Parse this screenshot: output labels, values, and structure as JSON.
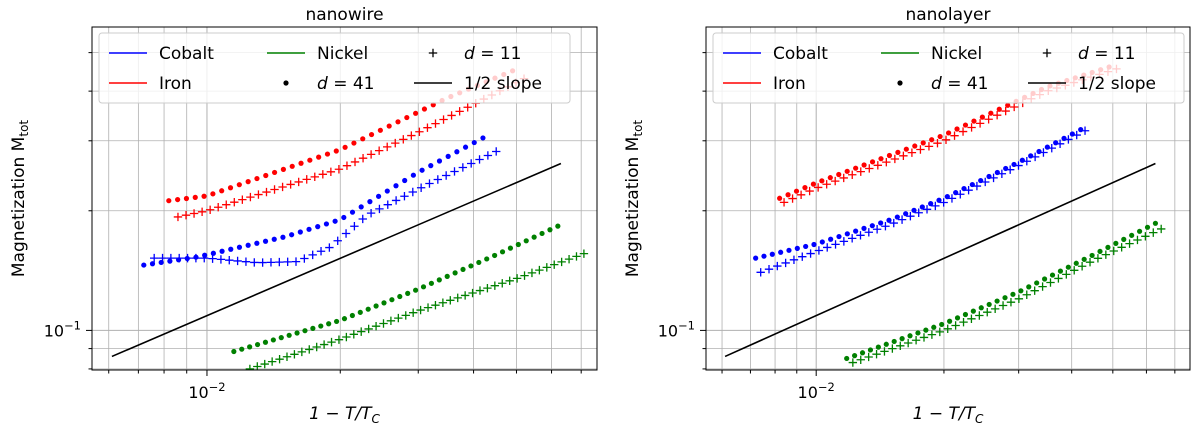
{
  "colors": {
    "cobalt": "#0000ff",
    "iron": "#ff0000",
    "nickel": "#008000",
    "slope": "#000000"
  },
  "chart_data": [
    {
      "type": "scatter",
      "title": "nanowire",
      "xlabel": "1 − T/T",
      "xlabel_sub": "C",
      "ylabel": "Magnetization M",
      "ylabel_sub": "tot",
      "xscale": "log",
      "yscale": "log",
      "xlim": [
        0.0055,
        0.076
      ],
      "ylim": [
        0.0795,
        0.58
      ],
      "x_tick_labels": [
        {
          "value": 0.01,
          "base": "10",
          "exp": "−2"
        }
      ],
      "y_tick_labels": [
        {
          "value": 0.1,
          "base": "10",
          "exp": "−1"
        }
      ],
      "grid": "major and minor",
      "legend": {
        "placement": "top",
        "entries": [
          {
            "label": "Cobalt",
            "kind": "line",
            "color": "cobalt"
          },
          {
            "label": "Iron",
            "kind": "line",
            "color": "iron"
          },
          {
            "label": "Nickel",
            "kind": "line",
            "color": "nickel"
          },
          {
            "label": "d = 41",
            "var": "d",
            "rest": " = 41",
            "kind": "dot"
          },
          {
            "label": "d = 11",
            "var": "d",
            "rest": " = 11",
            "kind": "plus"
          },
          {
            "label": "1/2 slope",
            "kind": "line",
            "color": "slope"
          }
        ]
      },
      "slope_line": {
        "x": [
          0.0061,
          0.063
        ],
        "y": [
          0.086,
          0.263
        ]
      },
      "series": [
        {
          "material": "Cobalt",
          "d": 41,
          "color": "cobalt",
          "marker": "dot",
          "x_range": [
            0.0072,
            0.042
          ],
          "points": 40,
          "curve": [
            [
              0.0072,
              0.146
            ],
            [
              0.0095,
              0.153
            ],
            [
              0.015,
              0.172
            ],
            [
              0.02,
              0.19
            ],
            [
              0.03,
              0.25
            ],
            [
              0.042,
              0.305
            ]
          ]
        },
        {
          "material": "Cobalt",
          "d": 11,
          "color": "cobalt",
          "marker": "plus",
          "x_range": [
            0.0076,
            0.045
          ],
          "points": 42,
          "curve": [
            [
              0.0076,
              0.152
            ],
            [
              0.01,
              0.152
            ],
            [
              0.013,
              0.148
            ],
            [
              0.016,
              0.149
            ],
            [
              0.019,
              0.162
            ],
            [
              0.023,
              0.195
            ],
            [
              0.032,
              0.235
            ],
            [
              0.045,
              0.282
            ]
          ]
        },
        {
          "material": "Iron",
          "d": 41,
          "color": "iron",
          "marker": "dot",
          "x_range": [
            0.0082,
            0.049
          ],
          "points": 40,
          "curve": [
            [
              0.0082,
              0.212
            ],
            [
              0.01,
              0.218
            ],
            [
              0.02,
              0.285
            ],
            [
              0.035,
              0.385
            ],
            [
              0.049,
              0.45
            ]
          ]
        },
        {
          "material": "Iron",
          "d": 11,
          "color": "iron",
          "marker": "plus",
          "x_range": [
            0.0086,
            0.052
          ],
          "points": 44,
          "curve": [
            [
              0.0086,
              0.193
            ],
            [
              0.01,
              0.2
            ],
            [
              0.02,
              0.255
            ],
            [
              0.03,
              0.315
            ],
            [
              0.052,
              0.43
            ]
          ]
        },
        {
          "material": "Nickel",
          "d": 41,
          "color": "nickel",
          "marker": "dot",
          "x_range": [
            0.0115,
            0.062
          ],
          "points": 42,
          "curve": [
            [
              0.0115,
              0.0885
            ],
            [
              0.02,
              0.106
            ],
            [
              0.03,
              0.127
            ],
            [
              0.045,
              0.155
            ],
            [
              0.062,
              0.183
            ]
          ]
        },
        {
          "material": "Nickel",
          "d": 11,
          "color": "nickel",
          "marker": "plus",
          "x_range": [
            0.0125,
            0.071
          ],
          "points": 46,
          "curve": [
            [
              0.0125,
              0.08
            ],
            [
              0.02,
              0.095
            ],
            [
              0.03,
              0.112
            ],
            [
              0.05,
              0.135
            ],
            [
              0.071,
              0.156
            ]
          ]
        }
      ]
    },
    {
      "type": "scatter",
      "title": "nanolayer",
      "xlabel": "1 − T/T",
      "xlabel_sub": "C",
      "ylabel": "Magnetization M",
      "ylabel_sub": "tot",
      "xscale": "log",
      "yscale": "log",
      "xlim": [
        0.0055,
        0.076
      ],
      "ylim": [
        0.0795,
        0.58
      ],
      "x_tick_labels": [
        {
          "value": 0.01,
          "base": "10",
          "exp": "−2"
        }
      ],
      "y_tick_labels": [
        {
          "value": 0.1,
          "base": "10",
          "exp": "−1"
        }
      ],
      "grid": "major and minor",
      "legend": {
        "placement": "top",
        "entries": [
          {
            "label": "Cobalt",
            "kind": "line",
            "color": "cobalt"
          },
          {
            "label": "Iron",
            "kind": "line",
            "color": "iron"
          },
          {
            "label": "Nickel",
            "kind": "line",
            "color": "nickel"
          },
          {
            "label": "d = 41",
            "var": "d",
            "rest": " = 41",
            "kind": "dot"
          },
          {
            "label": "d = 11",
            "var": "d",
            "rest": " = 11",
            "kind": "plus"
          },
          {
            "label": "1/2 slope",
            "kind": "line",
            "color": "slope"
          }
        ]
      },
      "slope_line": {
        "x": [
          0.0061,
          0.063
        ],
        "y": [
          0.086,
          0.263
        ]
      },
      "series": [
        {
          "material": "Cobalt",
          "d": 41,
          "color": "cobalt",
          "marker": "dot",
          "x_range": [
            0.0072,
            0.042
          ],
          "points": 40,
          "curve": [
            [
              0.0072,
              0.152
            ],
            [
              0.01,
              0.165
            ],
            [
              0.015,
              0.19
            ],
            [
              0.02,
              0.215
            ],
            [
              0.03,
              0.265
            ],
            [
              0.042,
              0.32
            ]
          ]
        },
        {
          "material": "Cobalt",
          "d": 11,
          "color": "cobalt",
          "marker": "plus",
          "x_range": [
            0.0074,
            0.043
          ],
          "points": 40,
          "curve": [
            [
              0.0074,
              0.14
            ],
            [
              0.01,
              0.158
            ],
            [
              0.015,
              0.185
            ],
            [
              0.02,
              0.21
            ],
            [
              0.03,
              0.26
            ],
            [
              0.043,
              0.318
            ]
          ]
        },
        {
          "material": "Iron",
          "d": 41,
          "color": "iron",
          "marker": "dot",
          "x_range": [
            0.0082,
            0.049
          ],
          "points": 40,
          "curve": [
            [
              0.0082,
              0.215
            ],
            [
              0.01,
              0.235
            ],
            [
              0.02,
              0.31
            ],
            [
              0.035,
              0.41
            ],
            [
              0.049,
              0.46
            ]
          ]
        },
        {
          "material": "Iron",
          "d": 11,
          "color": "iron",
          "marker": "plus",
          "x_range": [
            0.0084,
            0.051
          ],
          "points": 40,
          "curve": [
            [
              0.0084,
              0.21
            ],
            [
              0.01,
              0.228
            ],
            [
              0.02,
              0.3
            ],
            [
              0.035,
              0.4
            ],
            [
              0.051,
              0.455
            ]
          ]
        },
        {
          "material": "Nickel",
          "d": 41,
          "color": "nickel",
          "marker": "dot",
          "x_range": [
            0.0118,
            0.063
          ],
          "points": 40,
          "curve": [
            [
              0.0118,
              0.085
            ],
            [
              0.02,
              0.104
            ],
            [
              0.03,
              0.125
            ],
            [
              0.045,
              0.155
            ],
            [
              0.063,
              0.186
            ]
          ]
        },
        {
          "material": "Nickel",
          "d": 11,
          "color": "nickel",
          "marker": "plus",
          "x_range": [
            0.0122,
            0.065
          ],
          "points": 40,
          "curve": [
            [
              0.0122,
              0.083
            ],
            [
              0.02,
              0.1
            ],
            [
              0.03,
              0.12
            ],
            [
              0.045,
              0.15
            ],
            [
              0.065,
              0.18
            ]
          ]
        }
      ]
    }
  ]
}
